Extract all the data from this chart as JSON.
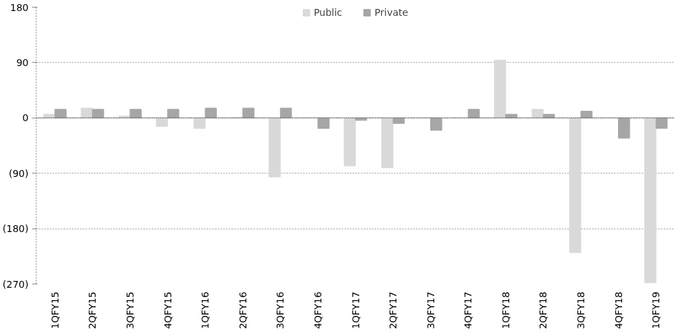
{
  "chart_data": {
    "type": "bar",
    "categories": [
      "1QFY15",
      "2QFY15",
      "3QFY15",
      "4QFY15",
      "1QFY16",
      "2QFY16",
      "3QFY16",
      "4QFY16",
      "1QFY17",
      "2QFY17",
      "3QFY17",
      "4QFY17",
      "1QFY18",
      "2QFY18",
      "3QFY18",
      "4QFY18",
      "1QFY19"
    ],
    "series": [
      {
        "name": "Public",
        "color": "#d9d9d9",
        "values": [
          6,
          16,
          3,
          -14,
          -17,
          1,
          -96,
          0,
          -78,
          -81,
          0,
          0,
          94,
          14,
          -219,
          0,
          -268
        ]
      },
      {
        "name": "Private",
        "color": "#a6a6a6",
        "values": [
          14,
          14,
          14,
          14,
          16,
          16,
          16,
          -17,
          -4,
          -9,
          -20,
          14,
          6,
          6,
          11,
          -33,
          -17
        ]
      }
    ],
    "ylim": [
      -270,
      180
    ],
    "yticks": [
      {
        "value": -270,
        "label": "(270)"
      },
      {
        "value": -180,
        "label": "(180)"
      },
      {
        "value": -90,
        "label": "(90)"
      },
      0,
      90,
      180
    ],
    "ref_lines": [
      {
        "axis": "y",
        "value": 0,
        "color": "#777777",
        "line_style": "dotted"
      }
    ],
    "grid": "y",
    "legend": "top"
  }
}
